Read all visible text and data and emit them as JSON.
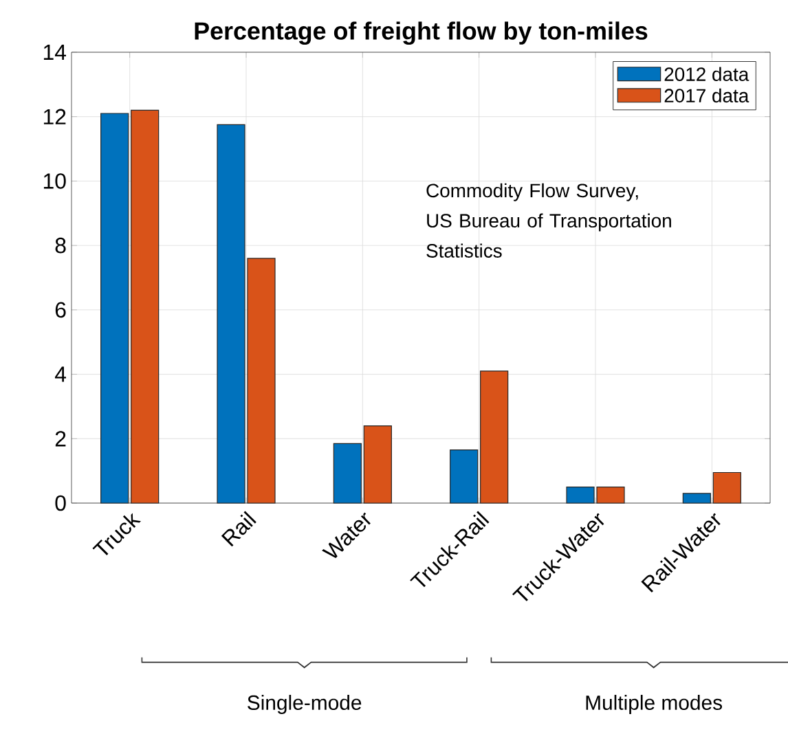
{
  "chart_data": {
    "type": "bar",
    "title": "Percentage of freight flow by ton-miles",
    "categories": [
      "Truck",
      "Rail",
      "Water",
      "Truck-Rail",
      "Truck-Water",
      "Rail-Water"
    ],
    "series": [
      {
        "name": "2012 data",
        "color": "#0072bd",
        "values": [
          12.1,
          11.75,
          1.85,
          1.65,
          0.5,
          0.3
        ]
      },
      {
        "name": "2017 data",
        "color": "#d95319",
        "values": [
          12.2,
          7.6,
          2.4,
          4.1,
          0.5,
          0.95
        ]
      }
    ],
    "ylim": [
      0,
      14
    ],
    "yticks": [
      0,
      2,
      4,
      6,
      8,
      10,
      12,
      14
    ],
    "grid": true,
    "legend": "top right",
    "annotations": [
      "Commodity Flow Survey, US Bureau of Transportation Statistics",
      "Single-mode",
      "Multiple modes"
    ]
  }
}
